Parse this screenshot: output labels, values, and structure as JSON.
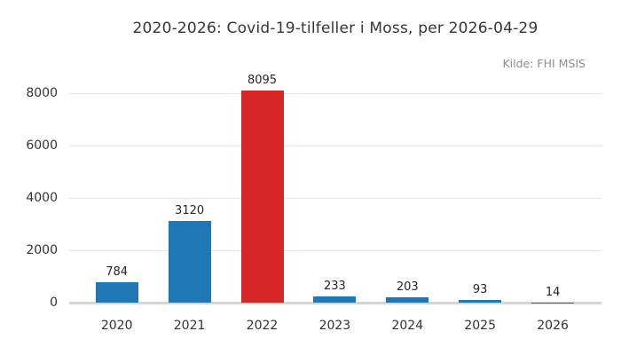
{
  "chart_data": {
    "type": "bar",
    "title": "2020-2026: Covid-19-tilfeller i Moss, per 2026-04-29",
    "source": "Kilde: FHI MSIS",
    "categories": [
      "2020",
      "2021",
      "2022",
      "2023",
      "2024",
      "2025",
      "2026"
    ],
    "values": [
      784,
      3120,
      8095,
      233,
      203,
      93,
      14
    ],
    "value_labels": [
      "784",
      "3120",
      "8095",
      "233",
      "203",
      "93",
      "14"
    ],
    "bar_colors": [
      "#1f77b4",
      "#1f77b4",
      "#d62728",
      "#1f77b4",
      "#1f77b4",
      "#1f77b4",
      "#1f77b4"
    ],
    "yticks": [
      0,
      2000,
      4000,
      6000,
      8000
    ],
    "ytick_labels": [
      "0",
      "2000",
      "4000",
      "6000",
      "8000"
    ],
    "ylim": [
      0,
      8500
    ],
    "grid": "horizontal-only",
    "legend": "none",
    "xlabel": "",
    "ylabel": "",
    "colors": {
      "blue": "#1f77b4",
      "red": "#d62728",
      "gridline": "#e5e5e5",
      "axis_line": "#d6d6d6",
      "title_text": "#363636",
      "tick_text": "#333333",
      "value_text": "#262626",
      "source_text": "#8c8c8c",
      "background": "#ffffff"
    }
  }
}
